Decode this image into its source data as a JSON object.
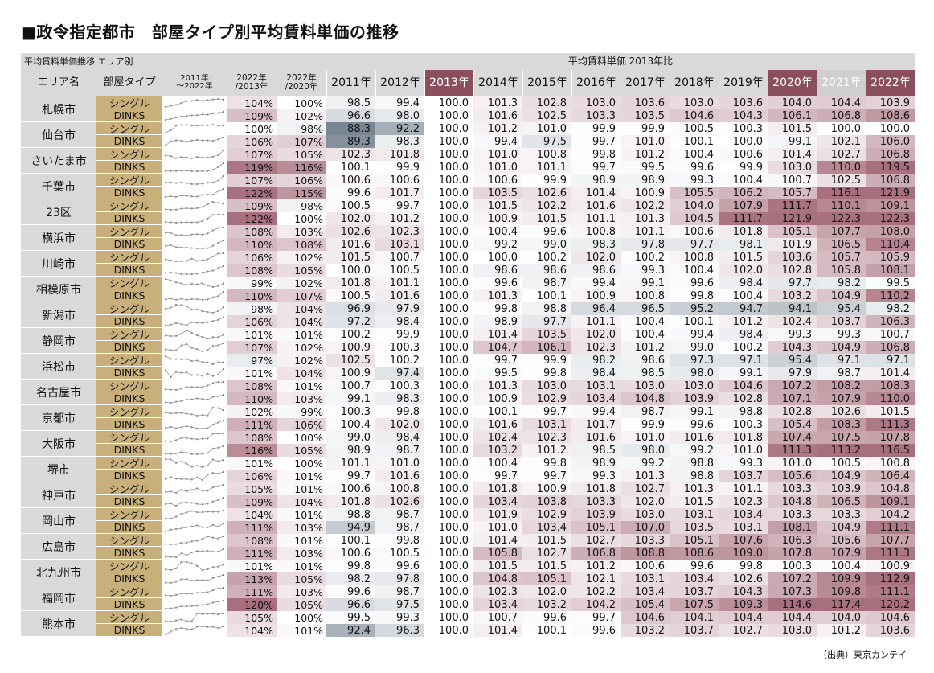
{
  "title": "■政令指定都市　部屋タイプ別平均賃料単価の推移",
  "source": "（出典）東京カンテイ",
  "header": {
    "top_left": "平均賃料単価推移 エリア別",
    "top_right": "平均賃料単価 2013年比",
    "area": "エリア名",
    "room_type": "部屋タイプ",
    "trend": "2011年\n～2022年",
    "ratio_2013": "2022年\n/2013年",
    "ratio_2020": "2022年\n/2020年",
    "years": [
      "2011年",
      "2012年",
      "2013年",
      "2014年",
      "2015年",
      "2016年",
      "2017年",
      "2018年",
      "2019年",
      "2020年",
      "2021年",
      "2022年"
    ]
  },
  "rows": [
    {
      "area": "札幌市",
      "type": "シングル",
      "r13": "104%",
      "r20": "100%",
      "v": [
        "98.5",
        "99.4",
        "100.0",
        "101.3",
        "102.8",
        "103.0",
        "103.6",
        "103.0",
        "103.6",
        "104.0",
        "104.4",
        "103.9"
      ]
    },
    {
      "area": "札幌市",
      "type": "DINKS",
      "r13": "109%",
      "r20": "102%",
      "v": [
        "96.6",
        "98.0",
        "100.0",
        "101.6",
        "102.5",
        "103.3",
        "103.5",
        "104.6",
        "104.3",
        "106.1",
        "106.8",
        "108.6"
      ]
    },
    {
      "area": "仙台市",
      "type": "シングル",
      "r13": "100%",
      "r20": "98%",
      "v": [
        "88.3",
        "92.2",
        "100.0",
        "101.2",
        "101.0",
        "99.9",
        "99.9",
        "100.5",
        "100.3",
        "101.5",
        "100.0",
        "100.0"
      ]
    },
    {
      "area": "仙台市",
      "type": "DINKS",
      "r13": "106%",
      "r20": "107%",
      "v": [
        "89.3",
        "98.3",
        "100.0",
        "99.4",
        "97.5",
        "99.7",
        "101.0",
        "100.1",
        "100.0",
        "99.1",
        "102.1",
        "106.0"
      ]
    },
    {
      "area": "さいたま市",
      "type": "シングル",
      "r13": "107%",
      "r20": "105%",
      "v": [
        "102.3",
        "101.8",
        "100.0",
        "101.0",
        "100.8",
        "99.8",
        "101.2",
        "100.4",
        "100.6",
        "101.4",
        "102.7",
        "106.8"
      ]
    },
    {
      "area": "さいたま市",
      "type": "DINKS",
      "r13": "119%",
      "r20": "116%",
      "v": [
        "100.1",
        "99.9",
        "100.0",
        "101.0",
        "101.1",
        "99.7",
        "99.5",
        "99.6",
        "99.9",
        "103.0",
        "110.0",
        "119.5"
      ]
    },
    {
      "area": "千葉市",
      "type": "シングル",
      "r13": "107%",
      "r20": "106%",
      "v": [
        "100.6",
        "100.6",
        "100.0",
        "100.6",
        "99.9",
        "98.9",
        "98.9",
        "99.3",
        "100.4",
        "100.7",
        "102.5",
        "106.8"
      ]
    },
    {
      "area": "千葉市",
      "type": "DINKS",
      "r13": "122%",
      "r20": "115%",
      "v": [
        "99.6",
        "101.7",
        "100.0",
        "103.5",
        "102.6",
        "101.4",
        "100.9",
        "105.5",
        "106.2",
        "105.7",
        "116.1",
        "121.9"
      ]
    },
    {
      "area": "23区",
      "type": "シングル",
      "r13": "109%",
      "r20": "98%",
      "v": [
        "100.5",
        "99.7",
        "100.0",
        "101.5",
        "102.2",
        "101.6",
        "102.2",
        "104.0",
        "107.9",
        "111.7",
        "110.1",
        "109.1"
      ]
    },
    {
      "area": "23区",
      "type": "DINKS",
      "r13": "122%",
      "r20": "100%",
      "v": [
        "102.0",
        "101.2",
        "100.0",
        "100.9",
        "101.5",
        "101.1",
        "101.3",
        "104.5",
        "111.7",
        "121.9",
        "122.3",
        "122.3"
      ]
    },
    {
      "area": "横浜市",
      "type": "シングル",
      "r13": "108%",
      "r20": "103%",
      "v": [
        "102.6",
        "102.3",
        "100.0",
        "100.4",
        "99.6",
        "100.8",
        "101.1",
        "100.6",
        "101.8",
        "105.1",
        "107.7",
        "108.0"
      ]
    },
    {
      "area": "横浜市",
      "type": "DINKS",
      "r13": "110%",
      "r20": "108%",
      "v": [
        "101.6",
        "103.1",
        "100.0",
        "99.2",
        "99.0",
        "98.3",
        "97.8",
        "97.7",
        "98.1",
        "101.9",
        "106.5",
        "110.4"
      ]
    },
    {
      "area": "川崎市",
      "type": "シングル",
      "r13": "106%",
      "r20": "102%",
      "v": [
        "101.5",
        "100.7",
        "100.0",
        "100.0",
        "100.2",
        "102.0",
        "100.2",
        "100.8",
        "101.5",
        "103.6",
        "105.7",
        "105.9"
      ]
    },
    {
      "area": "川崎市",
      "type": "DINKS",
      "r13": "108%",
      "r20": "105%",
      "v": [
        "100.0",
        "100.5",
        "100.0",
        "98.6",
        "98.6",
        "98.6",
        "99.3",
        "100.4",
        "102.0",
        "102.8",
        "105.8",
        "108.1"
      ]
    },
    {
      "area": "相模原市",
      "type": "シングル",
      "r13": "99%",
      "r20": "102%",
      "v": [
        "101.8",
        "101.1",
        "100.0",
        "99.6",
        "98.7",
        "99.4",
        "99.1",
        "99.6",
        "98.4",
        "97.7",
        "98.2",
        "99.5"
      ]
    },
    {
      "area": "相模原市",
      "type": "DINKS",
      "r13": "110%",
      "r20": "107%",
      "v": [
        "100.5",
        "101.6",
        "100.0",
        "101.3",
        "100.1",
        "100.9",
        "100.8",
        "99.8",
        "100.4",
        "103.2",
        "104.9",
        "110.2"
      ]
    },
    {
      "area": "新潟市",
      "type": "シングル",
      "r13": "98%",
      "r20": "104%",
      "v": [
        "96.9",
        "97.9",
        "100.0",
        "99.8",
        "98.8",
        "96.4",
        "96.5",
        "95.2",
        "94.7",
        "94.1",
        "95.4",
        "98.2"
      ]
    },
    {
      "area": "新潟市",
      "type": "DINKS",
      "r13": "106%",
      "r20": "104%",
      "v": [
        "97.2",
        "98.4",
        "100.0",
        "98.9",
        "97.7",
        "101.1",
        "100.4",
        "100.1",
        "101.2",
        "102.4",
        "103.7",
        "106.3"
      ]
    },
    {
      "area": "静岡市",
      "type": "シングル",
      "r13": "101%",
      "r20": "101%",
      "v": [
        "100.2",
        "99.9",
        "100.0",
        "101.4",
        "103.5",
        "102.0",
        "100.4",
        "99.4",
        "98.4",
        "99.3",
        "99.3",
        "100.7"
      ]
    },
    {
      "area": "静岡市",
      "type": "DINKS",
      "r13": "107%",
      "r20": "102%",
      "v": [
        "100.9",
        "100.3",
        "100.0",
        "104.7",
        "106.1",
        "102.3",
        "101.2",
        "99.0",
        "100.2",
        "104.3",
        "104.9",
        "106.8"
      ]
    },
    {
      "area": "浜松市",
      "type": "シングル",
      "r13": "97%",
      "r20": "102%",
      "v": [
        "102.5",
        "100.2",
        "100.0",
        "99.7",
        "99.9",
        "98.2",
        "98.6",
        "97.3",
        "97.1",
        "95.4",
        "97.1",
        "97.1"
      ]
    },
    {
      "area": "浜松市",
      "type": "DINKS",
      "r13": "101%",
      "r20": "104%",
      "v": [
        "100.9",
        "97.4",
        "100.0",
        "99.5",
        "99.8",
        "98.4",
        "98.5",
        "98.0",
        "99.1",
        "97.9",
        "98.7",
        "101.4"
      ]
    },
    {
      "area": "名古屋市",
      "type": "シングル",
      "r13": "108%",
      "r20": "101%",
      "v": [
        "100.7",
        "100.3",
        "100.0",
        "101.3",
        "103.0",
        "103.1",
        "103.0",
        "103.0",
        "104.6",
        "107.2",
        "108.2",
        "108.3"
      ]
    },
    {
      "area": "名古屋市",
      "type": "DINKS",
      "r13": "110%",
      "r20": "103%",
      "v": [
        "99.1",
        "98.3",
        "100.0",
        "100.9",
        "102.9",
        "103.4",
        "104.8",
        "103.9",
        "102.8",
        "107.1",
        "107.9",
        "110.0"
      ]
    },
    {
      "area": "京都市",
      "type": "シングル",
      "r13": "102%",
      "r20": "99%",
      "v": [
        "100.3",
        "99.8",
        "100.0",
        "100.1",
        "99.7",
        "99.4",
        "98.7",
        "99.1",
        "98.8",
        "102.8",
        "102.6",
        "101.5"
      ]
    },
    {
      "area": "京都市",
      "type": "DINKS",
      "r13": "111%",
      "r20": "106%",
      "v": [
        "100.4",
        "102.0",
        "100.0",
        "101.6",
        "103.1",
        "101.7",
        "99.9",
        "99.6",
        "100.3",
        "105.4",
        "108.3",
        "111.3"
      ]
    },
    {
      "area": "大阪市",
      "type": "シングル",
      "r13": "108%",
      "r20": "100%",
      "v": [
        "99.0",
        "98.4",
        "100.0",
        "102.4",
        "102.3",
        "101.6",
        "101.0",
        "101.6",
        "101.8",
        "107.4",
        "107.5",
        "107.8"
      ]
    },
    {
      "area": "大阪市",
      "type": "DINKS",
      "r13": "116%",
      "r20": "105%",
      "v": [
        "98.9",
        "98.7",
        "100.0",
        "103.2",
        "101.2",
        "98.5",
        "98.0",
        "99.2",
        "101.0",
        "111.3",
        "113.2",
        "116.5"
      ]
    },
    {
      "area": "堺市",
      "type": "シングル",
      "r13": "101%",
      "r20": "100%",
      "v": [
        "101.1",
        "101.0",
        "100.0",
        "100.4",
        "99.8",
        "98.9",
        "99.2",
        "98.8",
        "99.3",
        "101.0",
        "100.5",
        "100.8"
      ]
    },
    {
      "area": "堺市",
      "type": "DINKS",
      "r13": "106%",
      "r20": "101%",
      "v": [
        "99.7",
        "101.6",
        "100.0",
        "99.7",
        "99.7",
        "99.3",
        "101.3",
        "98.8",
        "103.7",
        "105.6",
        "104.9",
        "106.4"
      ]
    },
    {
      "area": "神戸市",
      "type": "シングル",
      "r13": "105%",
      "r20": "101%",
      "v": [
        "100.6",
        "100.8",
        "100.0",
        "101.8",
        "100.9",
        "101.8",
        "102.7",
        "101.3",
        "101.1",
        "103.3",
        "103.9",
        "104.8"
      ]
    },
    {
      "area": "神戸市",
      "type": "DINKS",
      "r13": "109%",
      "r20": "104%",
      "v": [
        "101.8",
        "102.6",
        "100.0",
        "103.4",
        "103.8",
        "103.3",
        "102.0",
        "101.5",
        "102.3",
        "104.8",
        "106.5",
        "109.1"
      ]
    },
    {
      "area": "岡山市",
      "type": "シングル",
      "r13": "104%",
      "r20": "101%",
      "v": [
        "98.8",
        "98.7",
        "100.0",
        "101.9",
        "102.9",
        "103.9",
        "103.0",
        "103.1",
        "103.4",
        "103.3",
        "103.3",
        "104.2"
      ]
    },
    {
      "area": "岡山市",
      "type": "DINKS",
      "r13": "111%",
      "r20": "103%",
      "v": [
        "94.9",
        "98.7",
        "100.0",
        "101.0",
        "103.4",
        "105.1",
        "107.0",
        "103.5",
        "103.1",
        "108.1",
        "104.9",
        "111.1"
      ]
    },
    {
      "area": "広島市",
      "type": "シングル",
      "r13": "108%",
      "r20": "101%",
      "v": [
        "100.1",
        "99.8",
        "100.0",
        "101.4",
        "101.5",
        "102.7",
        "103.3",
        "105.1",
        "107.6",
        "106.3",
        "105.6",
        "107.7"
      ]
    },
    {
      "area": "広島市",
      "type": "DINKS",
      "r13": "111%",
      "r20": "103%",
      "v": [
        "100.6",
        "100.5",
        "100.0",
        "105.8",
        "102.7",
        "106.8",
        "108.8",
        "108.6",
        "109.0",
        "107.8",
        "107.9",
        "111.3"
      ]
    },
    {
      "area": "北九州市",
      "type": "シングル",
      "r13": "101%",
      "r20": "101%",
      "v": [
        "99.8",
        "99.6",
        "100.0",
        "101.5",
        "101.5",
        "101.2",
        "100.6",
        "99.6",
        "99.8",
        "100.3",
        "100.4",
        "100.9"
      ]
    },
    {
      "area": "北九州市",
      "type": "DINKS",
      "r13": "113%",
      "r20": "105%",
      "v": [
        "98.2",
        "97.8",
        "100.0",
        "104.8",
        "105.1",
        "102.1",
        "103.1",
        "103.4",
        "102.6",
        "107.2",
        "109.9",
        "112.9"
      ]
    },
    {
      "area": "福岡市",
      "type": "シングル",
      "r13": "111%",
      "r20": "103%",
      "v": [
        "99.6",
        "98.7",
        "100.0",
        "102.3",
        "102.0",
        "102.2",
        "103.4",
        "103.7",
        "104.3",
        "107.3",
        "109.8",
        "111.1"
      ]
    },
    {
      "area": "福岡市",
      "type": "DINKS",
      "r13": "120%",
      "r20": "105%",
      "v": [
        "96.6",
        "97.5",
        "100.0",
        "103.4",
        "103.2",
        "104.2",
        "105.4",
        "107.5",
        "109.3",
        "114.6",
        "117.4",
        "120.2"
      ]
    },
    {
      "area": "熊本市",
      "type": "シングル",
      "r13": "105%",
      "r20": "100%",
      "v": [
        "99.5",
        "99.3",
        "100.0",
        "100.7",
        "99.6",
        "99.7",
        "104.6",
        "104.1",
        "104.4",
        "104.4",
        "104.0",
        "104.6"
      ]
    },
    {
      "area": "熊本市",
      "type": "DINKS",
      "r13": "104%",
      "r20": "101%",
      "v": [
        "92.4",
        "96.3",
        "100.0",
        "101.4",
        "100.1",
        "99.6",
        "103.2",
        "103.7",
        "102.7",
        "103.0",
        "101.2",
        "103.6"
      ]
    }
  ]
}
